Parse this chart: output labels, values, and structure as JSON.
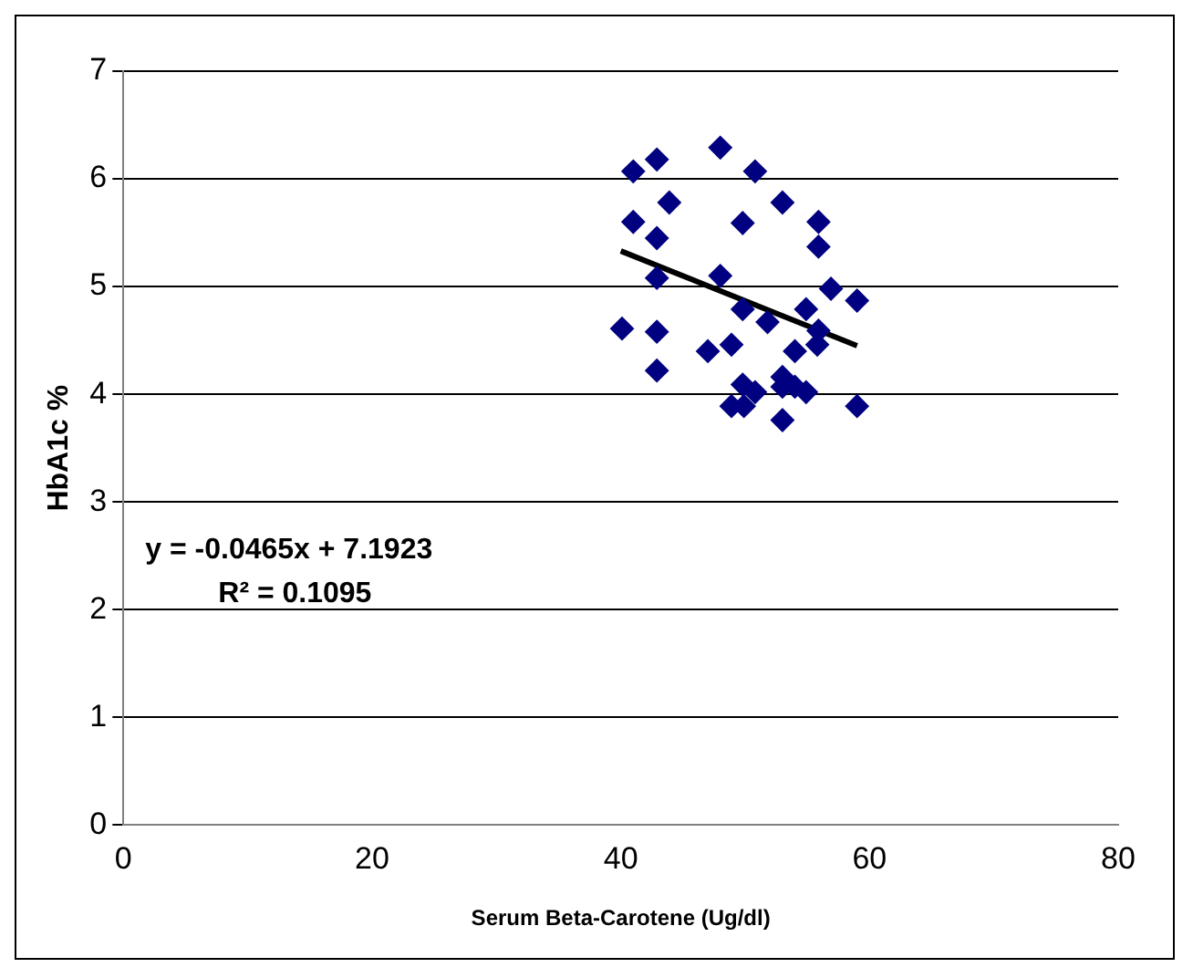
{
  "chart_data": {
    "type": "scatter",
    "xlabel": "Serum Beta-Carotene (Ug/dl)",
    "ylabel": "HbA1c %",
    "xlim": [
      0,
      80
    ],
    "xticks": [
      0,
      20,
      40,
      60,
      80
    ],
    "ylim": [
      0,
      7
    ],
    "yticks": [
      0,
      1,
      2,
      3,
      4,
      5,
      6,
      7
    ],
    "grid": "y",
    "legend": false,
    "marker": "diamond",
    "annotations": [
      "y = -0.0465x + 7.1923",
      "R² = 0.1095"
    ],
    "series": [
      {
        "color": "#000080",
        "x": [
          41.0,
          42.9,
          48.0,
          50.8,
          43.9,
          53.0,
          41.0,
          49.8,
          55.9,
          42.9,
          55.9,
          42.9,
          48.0,
          56.9,
          59.0,
          49.8,
          54.9,
          51.8,
          40.1,
          42.9,
          55.9,
          55.8,
          48.9,
          47.0,
          54.0,
          42.9,
          49.8,
          53.0,
          53.0,
          54.0,
          54.9,
          50.8,
          48.9,
          49.9,
          53.0,
          59.0
        ],
        "values": [
          6.07,
          6.18,
          6.29,
          6.07,
          5.78,
          5.78,
          5.6,
          5.59,
          5.6,
          5.45,
          5.37,
          5.08,
          5.1,
          4.98,
          4.87,
          4.79,
          4.79,
          4.67,
          4.61,
          4.58,
          4.59,
          4.46,
          4.46,
          4.4,
          4.4,
          4.22,
          4.09,
          4.16,
          4.07,
          4.07,
          4.02,
          4.02,
          3.89,
          3.89,
          3.76,
          3.89
        ]
      },
      {
        "type": "line",
        "color": "#000000",
        "x": [
          40,
          59
        ],
        "values": [
          5.33,
          4.45
        ],
        "marker": "none",
        "line_style": "solid"
      }
    ]
  }
}
